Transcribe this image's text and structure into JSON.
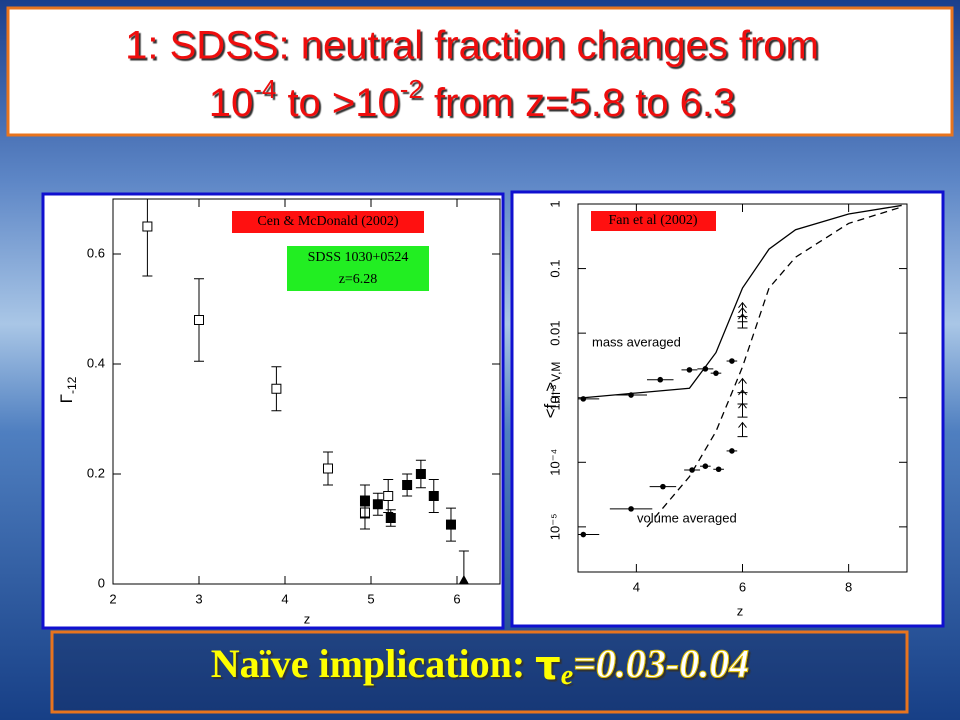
{
  "slide": {
    "title_line1": "1: SDSS: neutral fraction changes from",
    "title_line2": [
      "10",
      "-4",
      " to >10",
      "-2",
      " from z=5.8 to 6.3"
    ],
    "footer": [
      "Naïve implication: ",
      "τ",
      "e",
      "=0.03-0.04"
    ]
  },
  "chart_data": [
    {
      "type": "scatter",
      "xlabel": "z",
      "ylabel": [
        "Γ",
        "-12"
      ],
      "xlim": [
        2,
        6.5
      ],
      "ylim": [
        0,
        0.7
      ],
      "xticks": [
        2,
        3,
        4,
        5,
        6
      ],
      "yticks": [
        0,
        0.2,
        0.4,
        0.6
      ],
      "annotations": [
        "Cen & McDonald (2002)",
        "SDSS 1030+0524",
        "z=6.28"
      ],
      "series": [
        {
          "marker": "open-square",
          "color": "#000000",
          "x": [
            2.4,
            3.0,
            3.9,
            4.5,
            4.93,
            5.2
          ],
          "values": [
            0.65,
            0.48,
            0.355,
            0.21,
            0.13,
            0.16
          ],
          "errors": [
            0.09,
            0.075,
            0.04,
            0.03,
            0.03,
            0.03
          ]
        },
        {
          "marker": "filled-square",
          "color": "#000000",
          "x": [
            4.93,
            5.08,
            5.23,
            5.42,
            5.58,
            5.73,
            5.93
          ],
          "values": [
            0.15,
            0.145,
            0.12,
            0.18,
            0.2,
            0.16,
            0.108
          ],
          "errors": [
            0.03,
            0.02,
            0.015,
            0.02,
            0.025,
            0.03,
            0.03
          ]
        },
        {
          "marker": "triangle",
          "color": "#000000",
          "x": [
            6.08
          ],
          "values": [
            0
          ],
          "errors": [
            0.06
          ]
        }
      ]
    },
    {
      "type": "scatter",
      "log_y": true,
      "xlabel": "z",
      "ylabel": [
        "<f",
        "HI",
        ">",
        "V,M"
      ],
      "xlim": [
        2.9,
        9.1
      ],
      "ylim": [
        2e-06,
        1
      ],
      "xticks": [
        4,
        6,
        8
      ],
      "yticks": [
        {
          "value": 1e-05,
          "label": "10⁻⁵"
        },
        {
          "value": 0.0001,
          "label": "10⁻⁴"
        },
        {
          "value": 0.001,
          "label": "10⁻³"
        },
        0.01,
        0.1,
        1
      ],
      "annotations": [
        "Fan et al (2002)",
        "mass averaged",
        "volume averaged"
      ],
      "series": [
        {
          "style": "points",
          "color": "#000000",
          "x": [
            3.0,
            3.9,
            4.45,
            5.0,
            5.3,
            5.5,
            5.8
          ],
          "values": [
            0.00096,
            0.0011,
            0.0019,
            0.0027,
            0.0028,
            0.0024,
            0.0037
          ],
          "xerr": [
            0.3,
            0.3,
            0.25,
            0.15,
            0.15,
            0.1,
            0.1
          ]
        },
        {
          "style": "points",
          "color": "#000000",
          "x": [
            3.0,
            3.9,
            4.5,
            5.05,
            5.3,
            5.55,
            5.8
          ],
          "values": [
            7.6e-06,
            1.9e-05,
            4.2e-05,
            7.6e-05,
            8.7e-05,
            7.8e-05,
            0.00015
          ],
          "xerr": [
            0.3,
            0.4,
            0.25,
            0.15,
            0.1,
            0.1,
            0.1
          ]
        },
        {
          "style": "lower-limit",
          "color": "#000000",
          "x": [
            6.0,
            6.0,
            6.0
          ],
          "values": [
            0.012,
            0.015,
            0.018
          ]
        },
        {
          "style": "lower-limit",
          "color": "#000000",
          "x": [
            6.0,
            6.0,
            6.0,
            6.0
          ],
          "values": [
            0.00025,
            0.0005,
            0.0008,
            0.0012
          ]
        },
        {
          "style": "line",
          "dash": false,
          "color": "#000000",
          "x": [
            3,
            5,
            5.5,
            6,
            6.5,
            7,
            8,
            9
          ],
          "values": [
            0.001,
            0.0014,
            0.005,
            0.05,
            0.2,
            0.4,
            0.7,
            0.95
          ]
        },
        {
          "style": "line",
          "dash": true,
          "color": "#000000",
          "x": [
            4.2,
            5,
            5.5,
            6,
            6.5,
            7,
            8,
            9
          ],
          "values": [
            1e-05,
            6e-05,
            0.0003,
            0.003,
            0.05,
            0.15,
            0.5,
            0.9
          ]
        }
      ]
    }
  ]
}
